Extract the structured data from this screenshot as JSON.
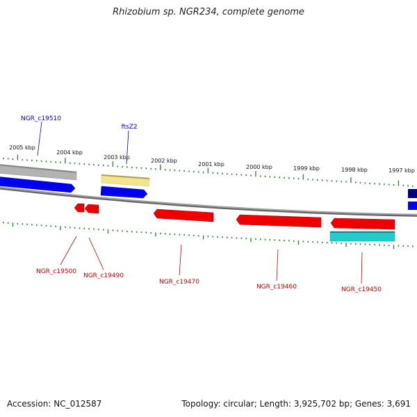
{
  "title": "Rhizobium sp. NGR234, complete genome",
  "footer": {
    "accession": "Accession: NC_012587",
    "summary": "Topology: circular; Length: 3,925,702 bp; Genes: 3,691"
  },
  "ticks": [
    "2005 kbp",
    "2004 kbp",
    "2003 kbp",
    "2002 kbp",
    "2001 kbp",
    "2000 kbp",
    "1999 kbp",
    "1998 kbp",
    "1997 kbp"
  ],
  "genes": {
    "forward": [
      "NGR_c19510",
      "ftsZ2"
    ],
    "reverse": [
      "NGR_c19500",
      "NGR_c19490",
      "NGR_c19470",
      "NGR_c19460",
      "NGR_c19450"
    ]
  },
  "colors": {
    "backbone": "#888888",
    "tick": "#2e8b2e",
    "forward_label": "#0000cc",
    "reverse_label": "#cc0000",
    "gene_blue": "#0000ee",
    "gene_red": "#ee0000",
    "gene_grey": "#b0b0b0",
    "gene_yellow": "#f2e58c",
    "gene_cyan": "#22cccc",
    "gene_navy": "#000080"
  }
}
